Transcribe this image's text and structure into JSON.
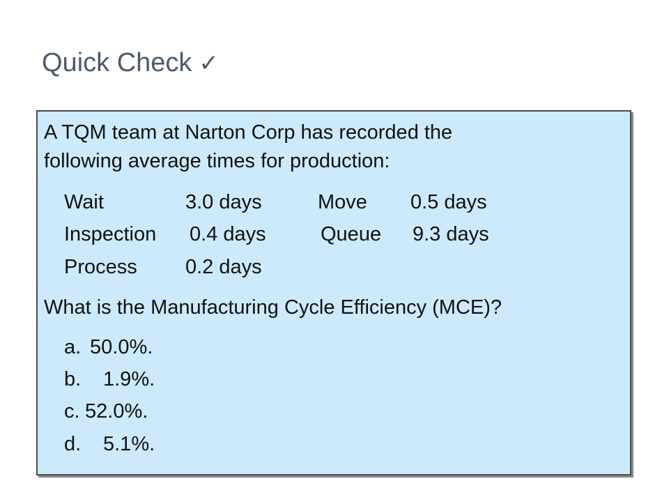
{
  "slide": {
    "title": "Quick Check",
    "title_icon": "check-mark-icon",
    "check_glyph": "✓"
  },
  "question": {
    "intro_line1": "A TQM team at Narton Corp has recorded the",
    "intro_line2": "following average times for production:",
    "times": [
      {
        "label": "Wait",
        "value": "3.0 days"
      },
      {
        "label": "Move",
        "value": "0.5 days"
      },
      {
        "label": "Inspection",
        "value": "0.4 days"
      },
      {
        "label": "Queue",
        "value": "9.3 days"
      },
      {
        "label": "Process",
        "value": "0.2 days"
      }
    ],
    "prompt": "What is the Manufacturing Cycle Efficiency (MCE)?",
    "options": [
      {
        "letter": "a.",
        "text": "50.0%."
      },
      {
        "letter": "b.",
        "text": "1.9%."
      },
      {
        "letter": "c.",
        "text": "52.0%."
      },
      {
        "letter": "d.",
        "text": "5.1%."
      }
    ]
  },
  "colors": {
    "panel_background": "#cdeafc",
    "title_text": "#4f5a6b"
  }
}
